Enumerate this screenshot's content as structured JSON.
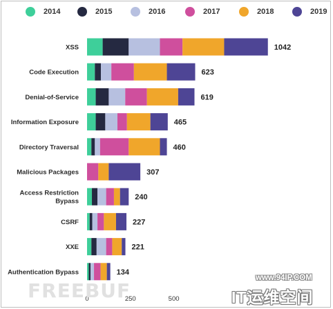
{
  "chart_data": {
    "type": "bar",
    "orientation": "horizontal",
    "stacked": true,
    "legend_position": "top",
    "categories": [
      "XSS",
      "Code Execution",
      "Denial-of-Service",
      "Information Exposure",
      "Directory Traversal",
      "Malicious Packages",
      "Access Restriction Bypass",
      "CSRF",
      "XXE",
      "Authentication Bypass"
    ],
    "totals": [
      1042,
      623,
      619,
      465,
      460,
      307,
      240,
      227,
      221,
      134
    ],
    "series": [
      {
        "name": "2014",
        "color": "#3ecf9a",
        "values": [
          90,
          45,
          50,
          50,
          25,
          0,
          28,
          15,
          25,
          10
        ]
      },
      {
        "name": "2015",
        "color": "#252941",
        "values": [
          150,
          35,
          75,
          55,
          20,
          0,
          32,
          15,
          30,
          10
        ]
      },
      {
        "name": "2016",
        "color": "#b7c0e0",
        "values": [
          180,
          60,
          95,
          70,
          30,
          0,
          50,
          30,
          55,
          20
        ]
      },
      {
        "name": "2017",
        "color": "#cf4f9d",
        "values": [
          130,
          130,
          125,
          55,
          165,
          65,
          45,
          37,
          35,
          38
        ]
      },
      {
        "name": "2018",
        "color": "#f0a62b",
        "values": [
          240,
          190,
          180,
          135,
          180,
          60,
          35,
          70,
          55,
          36
        ]
      },
      {
        "name": "2019",
        "color": "#4e4595",
        "values": [
          252,
          163,
          94,
          100,
          40,
          182,
          50,
          60,
          21,
          20
        ]
      }
    ],
    "xticks": [
      0,
      250,
      500
    ],
    "xlim": [
      0,
      1100
    ],
    "title": "",
    "xlabel": "",
    "ylabel": "",
    "grid": false
  },
  "watermarks": {
    "left": "FREEBUF",
    "url": "www.94IP.COM",
    "brand": "IT运维空间"
  }
}
